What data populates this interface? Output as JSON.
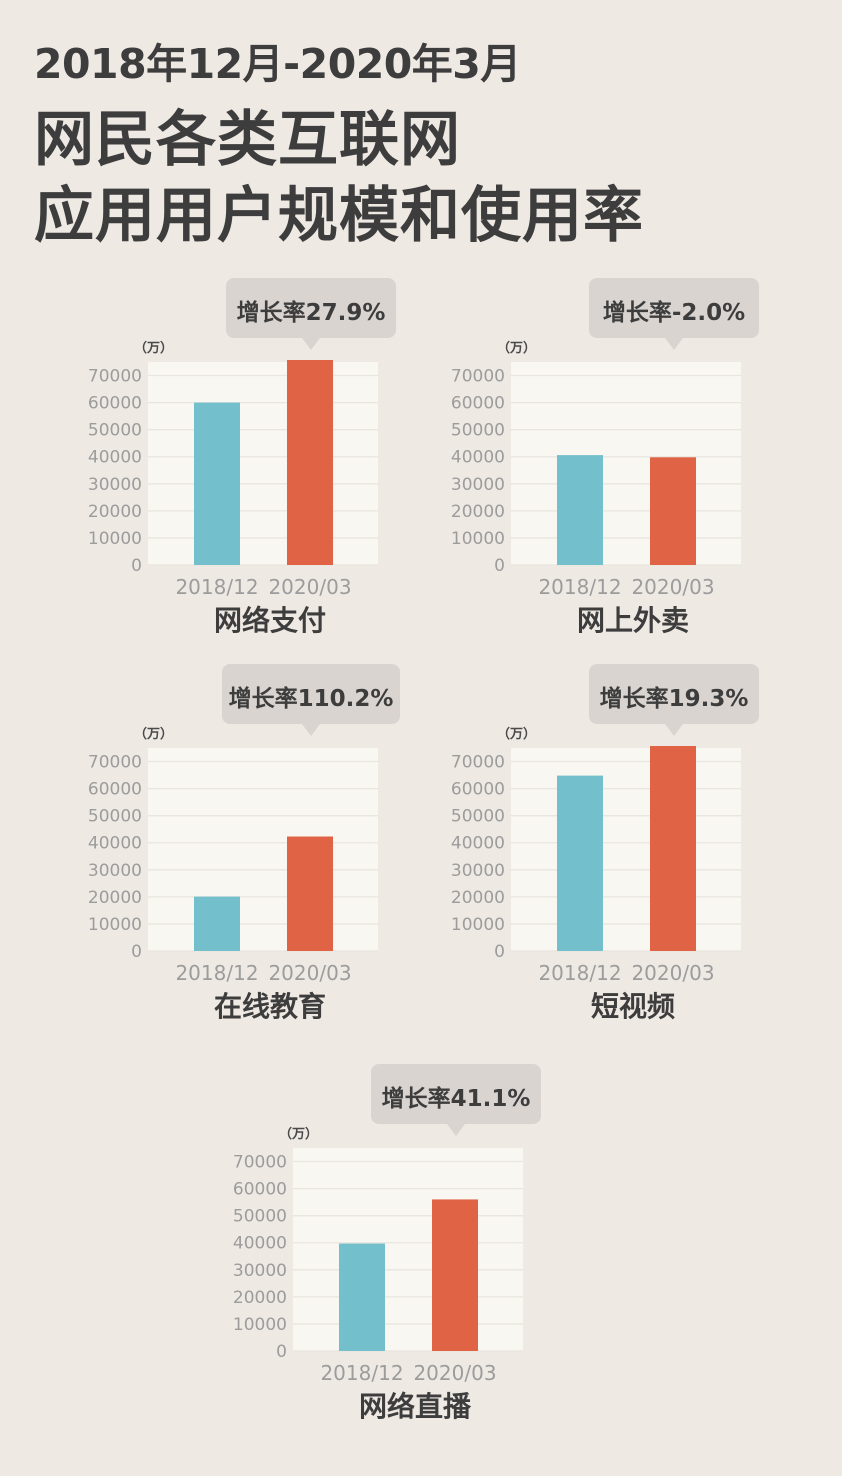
{
  "header": {
    "date_range": "2018年12月-2020年3月",
    "title_line1": "网民各类互联网",
    "title_line2": "应用用户规模和使用率"
  },
  "colors": {
    "background": "#efe9e4",
    "plot_area": "#f9f7f2",
    "bar_2018": "#73bfcb",
    "bar_2020": "#df6344",
    "callout": "#d9d4d0",
    "tick_text": "#9c9c9c",
    "title_text": "#3d3d3d"
  },
  "chart_data": [
    {
      "type": "bar",
      "title": "网络支付",
      "callout": "增长率27.9%",
      "unit": "（万）",
      "categories": [
        "2018/12",
        "2020/03"
      ],
      "values": [
        60000,
        76800
      ],
      "yticks": [
        0,
        10000,
        20000,
        30000,
        40000,
        50000,
        60000,
        70000
      ],
      "ylim": [
        0,
        75000
      ],
      "grid": true
    },
    {
      "type": "bar",
      "title": "网上外卖",
      "callout": "增长率-2.0%",
      "unit": "（万）",
      "categories": [
        "2018/12",
        "2020/03"
      ],
      "values": [
        40600,
        39800
      ],
      "yticks": [
        0,
        10000,
        20000,
        30000,
        40000,
        50000,
        60000,
        70000
      ],
      "ylim": [
        0,
        75000
      ],
      "grid": true
    },
    {
      "type": "bar",
      "title": "在线教育",
      "callout": "增长率110.2%",
      "unit": "（万）",
      "categories": [
        "2018/12",
        "2020/03"
      ],
      "values": [
        20100,
        42300
      ],
      "yticks": [
        0,
        10000,
        20000,
        30000,
        40000,
        50000,
        60000,
        70000
      ],
      "ylim": [
        0,
        75000
      ],
      "grid": true
    },
    {
      "type": "bar",
      "title": "短视频",
      "callout": "增长率19.3%",
      "unit": "（万）",
      "categories": [
        "2018/12",
        "2020/03"
      ],
      "values": [
        64800,
        77300
      ],
      "yticks": [
        0,
        10000,
        20000,
        30000,
        40000,
        50000,
        60000,
        70000
      ],
      "ylim": [
        0,
        75000
      ],
      "grid": true
    },
    {
      "type": "bar",
      "title": "网络直播",
      "callout": "增长率41.1%",
      "unit": "（万）",
      "categories": [
        "2018/12",
        "2020/03"
      ],
      "values": [
        39700,
        56000
      ],
      "yticks": [
        0,
        10000,
        20000,
        30000,
        40000,
        50000,
        60000,
        70000
      ],
      "ylim": [
        0,
        75000
      ],
      "grid": true
    }
  ]
}
